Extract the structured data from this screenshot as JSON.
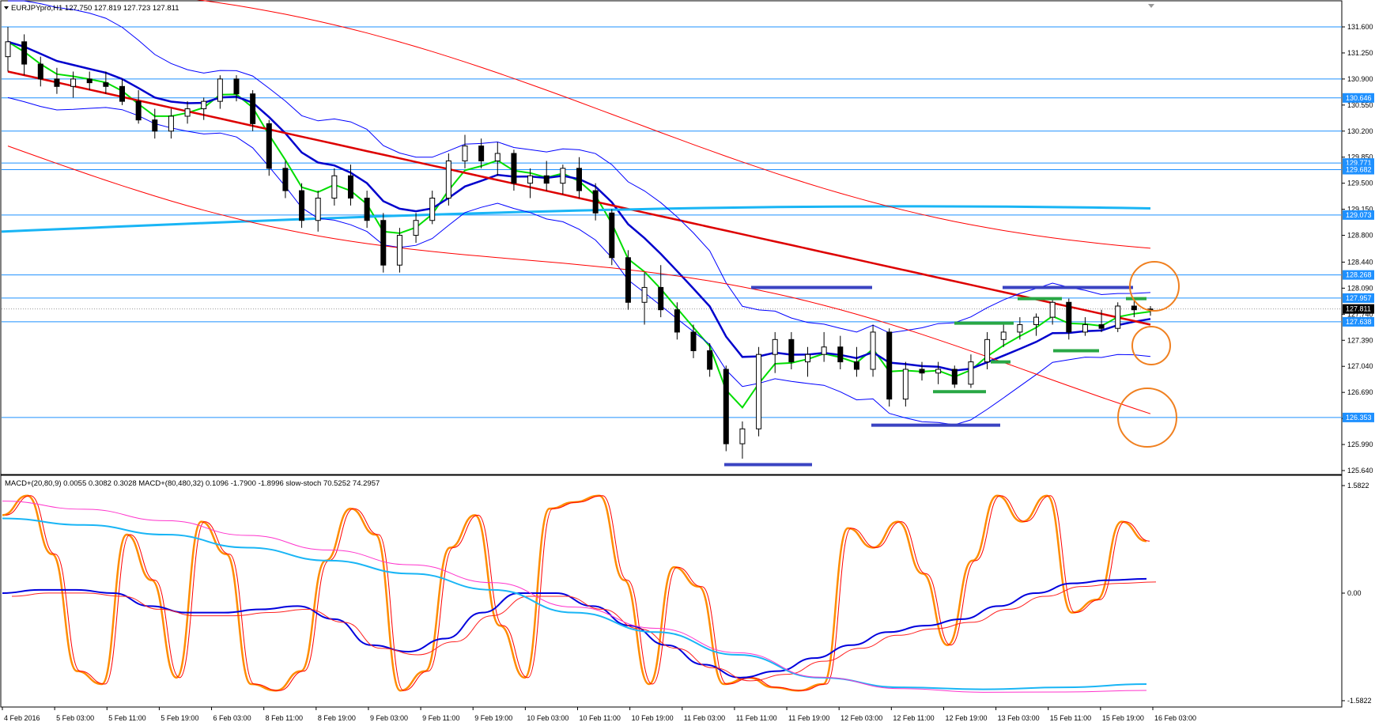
{
  "window": {
    "symbol_header": "EURJPYpro,H1  127.750 127.819 127.723 127.811",
    "indicator_header": "MACD+(20,80,9) 0.0055 0.3082 0.3028   MACD+(80,480,32) 0.1096 -1.7900 -1.8996   slow-stoch 70.5252 74.2957"
  },
  "price_axis": {
    "ticks": [
      "131.600",
      "131.250",
      "130.900",
      "130.550",
      "130.200",
      "129.850",
      "129.500",
      "129.150",
      "128.800",
      "128.440",
      "128.090",
      "127.740",
      "127.390",
      "127.040",
      "126.690",
      "126.340",
      "125.990",
      "125.640"
    ],
    "min": 125.64,
    "max": 131.6
  },
  "level_labels": [
    {
      "text": "130.646",
      "value": 130.646
    },
    {
      "text": "129.771",
      "value": 129.771
    },
    {
      "text": "129.682",
      "value": 129.682
    },
    {
      "text": "129.073",
      "value": 129.073
    },
    {
      "text": "128.268",
      "value": 128.268
    },
    {
      "text": "127.957",
      "value": 127.957
    },
    {
      "text": "127.638",
      "value": 127.638
    },
    {
      "text": "126.353",
      "value": 126.353
    }
  ],
  "current_price": "127.811",
  "indicator_axis": {
    "ticks": [
      "1.5822",
      "0.00",
      "-1.5822"
    ]
  },
  "time_axis": {
    "ticks": [
      "4 Feb 2016",
      "5 Feb 03:00",
      "5 Feb 11:00",
      "5 Feb 19:00",
      "6 Feb 03:00",
      "8 Feb 11:00",
      "8 Feb 19:00",
      "9 Feb 03:00",
      "9 Feb 11:00",
      "9 Feb 19:00",
      "10 Feb 03:00",
      "10 Feb 11:00",
      "10 Feb 19:00",
      "11 Feb 03:00",
      "11 Feb 11:00",
      "11 Feb 19:00",
      "12 Feb 03:00",
      "12 Feb 11:00",
      "12 Feb 19:00",
      "13 Feb 03:00",
      "15 Feb 11:00",
      "15 Feb 19:00",
      "16 Feb 03:00"
    ]
  },
  "colors": {
    "up_candle": "#ffffff",
    "down_candle": "#000000",
    "horizontal_level": "#1e90ff",
    "bollinger_outer": "#ff0000",
    "bollinger_inner": "#0000ff",
    "ma_fast": "#00dd00",
    "ma_mid": "#0000cc",
    "ma_slow": "#dd0000",
    "ma_long": "#19b5f5",
    "range_marks": "#3a43c2",
    "support_marks": "#28a745",
    "circle_marks": "#f08020",
    "stoch_main": "#ff8c00",
    "stoch_signal": "#ff0000",
    "macd_fast": "#0000dd",
    "macd_signal": "#ff2020",
    "macd_slow": "#19b5f5",
    "macd_slow_signal": "#ff33cc"
  },
  "chart_data": [
    {
      "type": "candlestick",
      "title": "EURJPYpro,H1",
      "ylim": [
        125.64,
        131.6
      ],
      "horizontal_levels": [
        131.6,
        130.9,
        130.646,
        130.2,
        129.771,
        129.682,
        129.073,
        128.268,
        127.957,
        127.638,
        126.353
      ],
      "candles_ohlc": [
        [
          131.2,
          131.6,
          131.0,
          131.4
        ],
        [
          131.4,
          131.5,
          130.95,
          131.1
        ],
        [
          131.1,
          131.2,
          130.8,
          130.9
        ],
        [
          130.9,
          131.05,
          130.7,
          130.8
        ],
        [
          130.8,
          131.0,
          130.65,
          130.9
        ],
        [
          130.9,
          131.0,
          130.75,
          130.85
        ],
        [
          130.85,
          131.0,
          130.7,
          130.8
        ],
        [
          130.8,
          130.9,
          130.55,
          130.6
        ],
        [
          130.6,
          130.75,
          130.3,
          130.35
        ],
        [
          130.35,
          130.5,
          130.1,
          130.2
        ],
        [
          130.2,
          130.5,
          130.1,
          130.4
        ],
        [
          130.4,
          130.6,
          130.3,
          130.5
        ],
        [
          130.5,
          130.65,
          130.35,
          130.6
        ],
        [
          130.6,
          130.95,
          130.5,
          130.9
        ],
        [
          130.9,
          130.95,
          130.6,
          130.7
        ],
        [
          130.7,
          130.75,
          130.2,
          130.3
        ],
        [
          130.3,
          130.35,
          129.6,
          129.7
        ],
        [
          129.7,
          129.8,
          129.3,
          129.4
        ],
        [
          129.4,
          129.5,
          128.9,
          129.0
        ],
        [
          129.0,
          129.4,
          128.85,
          129.3
        ],
        [
          129.3,
          129.7,
          129.2,
          129.6
        ],
        [
          129.6,
          129.75,
          129.2,
          129.3
        ],
        [
          129.3,
          129.4,
          128.9,
          129.0
        ],
        [
          129.0,
          129.1,
          128.3,
          128.4
        ],
        [
          128.4,
          128.9,
          128.3,
          128.8
        ],
        [
          128.8,
          129.1,
          128.7,
          129.0
        ],
        [
          129.0,
          129.4,
          128.95,
          129.3
        ],
        [
          129.3,
          129.9,
          129.2,
          129.8
        ],
        [
          129.8,
          130.15,
          129.7,
          130.0
        ],
        [
          130.0,
          130.1,
          129.7,
          129.8
        ],
        [
          129.8,
          130.05,
          129.6,
          129.9
        ],
        [
          129.9,
          129.95,
          129.4,
          129.5
        ],
        [
          129.5,
          129.7,
          129.3,
          129.6
        ],
        [
          129.6,
          129.8,
          129.4,
          129.5
        ],
        [
          129.5,
          129.75,
          129.35,
          129.7
        ],
        [
          129.7,
          129.85,
          129.3,
          129.4
        ],
        [
          129.4,
          129.5,
          129.0,
          129.1
        ],
        [
          129.1,
          129.15,
          128.4,
          128.5
        ],
        [
          128.5,
          128.6,
          127.8,
          127.9
        ],
        [
          127.9,
          128.3,
          127.6,
          128.1
        ],
        [
          128.1,
          128.4,
          127.7,
          127.8
        ],
        [
          127.8,
          127.9,
          127.4,
          127.5
        ],
        [
          127.5,
          127.6,
          127.15,
          127.25
        ],
        [
          127.25,
          127.35,
          126.9,
          127.0
        ],
        [
          127.0,
          127.05,
          125.9,
          126.0
        ],
        [
          126.0,
          126.3,
          125.8,
          126.2
        ],
        [
          126.2,
          127.3,
          126.1,
          127.2
        ],
        [
          127.2,
          127.5,
          126.95,
          127.4
        ],
        [
          127.4,
          127.5,
          127.0,
          127.1
        ],
        [
          127.1,
          127.3,
          126.9,
          127.2
        ],
        [
          127.2,
          127.5,
          127.1,
          127.3
        ],
        [
          127.3,
          127.45,
          127.0,
          127.1
        ],
        [
          127.1,
          127.3,
          126.9,
          127.0
        ],
        [
          127.0,
          127.6,
          126.9,
          127.5
        ],
        [
          127.5,
          127.55,
          126.5,
          126.6
        ],
        [
          126.6,
          127.1,
          126.5,
          127.0
        ],
        [
          127.0,
          127.1,
          126.85,
          126.95
        ],
        [
          126.95,
          127.1,
          126.8,
          127.0
        ],
        [
          127.0,
          127.05,
          126.75,
          126.8
        ],
        [
          126.8,
          127.2,
          126.75,
          127.1
        ],
        [
          127.1,
          127.5,
          127.0,
          127.4
        ],
        [
          127.4,
          127.6,
          127.3,
          127.5
        ],
        [
          127.5,
          127.7,
          127.4,
          127.6
        ],
        [
          127.6,
          127.75,
          127.45,
          127.7
        ],
        [
          127.7,
          127.95,
          127.6,
          127.9
        ],
        [
          127.9,
          127.95,
          127.4,
          127.5
        ],
        [
          127.5,
          127.7,
          127.45,
          127.6
        ],
        [
          127.6,
          127.8,
          127.5,
          127.55
        ],
        [
          127.55,
          127.9,
          127.5,
          127.85
        ],
        [
          127.85,
          127.95,
          127.7,
          127.8
        ],
        [
          127.8,
          127.85,
          127.72,
          127.81
        ]
      ]
    },
    {
      "type": "line",
      "title": "MACD+(20,80,9) / MACD+(80,480,32) / slow-stoch",
      "ylim": [
        -1.5822,
        1.5822
      ],
      "series_values": {
        "slow-stoch": [
          1.2,
          1.5,
          0.6,
          -1.2,
          -1.4,
          0.9,
          0.2,
          -1.3,
          1.1,
          0.6,
          -1.4,
          -1.5,
          -1.2,
          0.5,
          1.3,
          0.9,
          -1.5,
          -1.2,
          0.7,
          1.2,
          -0.5,
          -1.3,
          1.3,
          1.4,
          1.5,
          0.2,
          -1.4,
          0.4,
          0.1,
          -1.4,
          -1.3,
          -1.45,
          -1.5,
          -1.4,
          1.0,
          0.7,
          1.1,
          0.3,
          -0.8,
          0.5,
          1.5,
          1.1,
          1.5,
          -0.3,
          -0.1,
          1.1,
          0.8
        ],
        "MACD+(20,80,9)": [
          0.0,
          0.05,
          0.05,
          0.0,
          -0.2,
          -0.3,
          -0.3,
          -0.25,
          -0.2,
          -0.4,
          -0.8,
          -0.9,
          -0.7,
          -0.3,
          0.0,
          0.0,
          -0.2,
          -0.5,
          -0.8,
          -1.1,
          -1.3,
          -1.2,
          -1.0,
          -0.8,
          -0.6,
          -0.5,
          -0.4,
          -0.2,
          0.0,
          0.15,
          0.2,
          0.22
        ],
        "MACD+(80,480,32)": [
          1.15,
          1.05,
          0.9,
          0.7,
          0.5,
          0.3,
          0.05,
          -0.3,
          -0.6,
          -0.95,
          -1.3,
          -1.45,
          -1.48,
          -1.45,
          -1.4
        ]
      }
    }
  ]
}
